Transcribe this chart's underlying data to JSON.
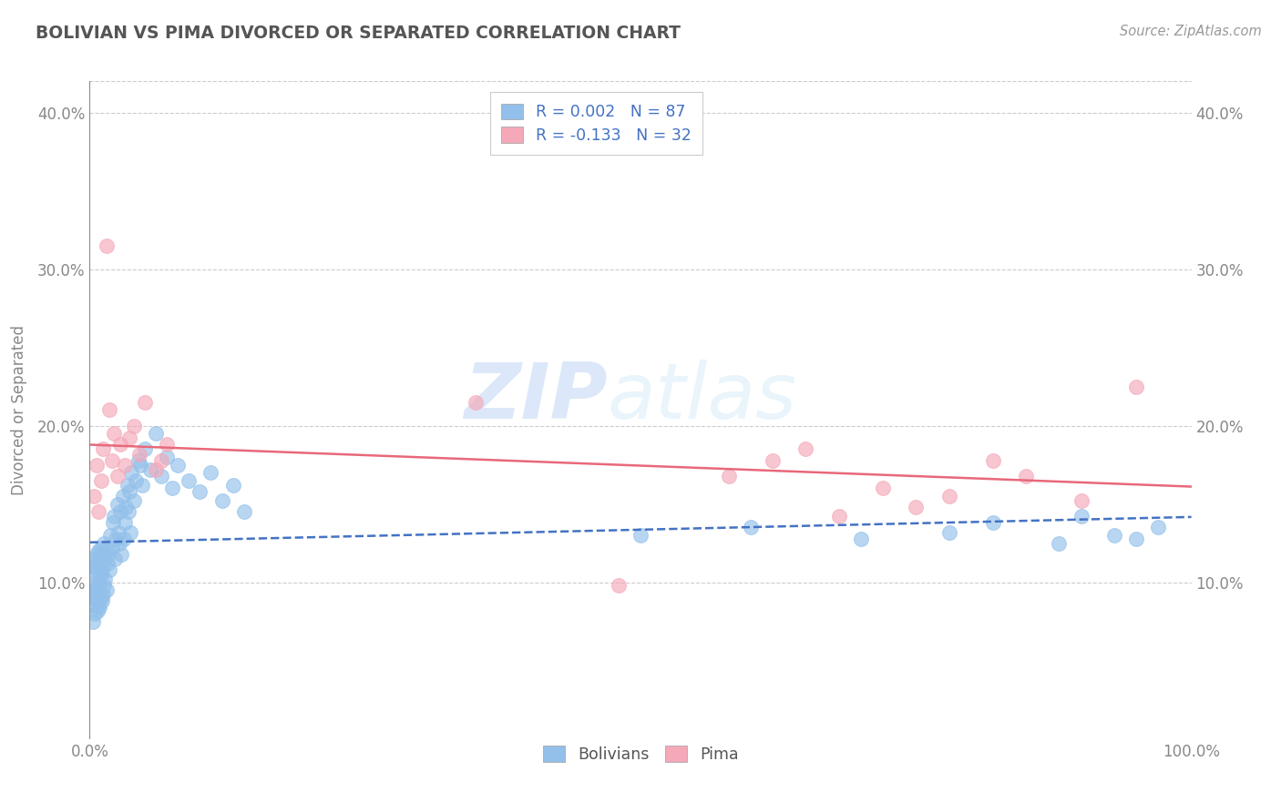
{
  "title": "BOLIVIAN VS PIMA DIVORCED OR SEPARATED CORRELATION CHART",
  "source_text": "Source: ZipAtlas.com",
  "ylabel": "Divorced or Separated",
  "xlim": [
    0.0,
    1.0
  ],
  "ylim": [
    0.0,
    0.42
  ],
  "ytick_labels": [
    "10.0%",
    "20.0%",
    "30.0%",
    "40.0%"
  ],
  "ytick_positions": [
    0.1,
    0.2,
    0.3,
    0.4
  ],
  "bolivian_color": "#92c0ea",
  "pima_color": "#f4a8b8",
  "bolivian_line_color": "#4472c4",
  "pima_line_color": "#e8687a",
  "R_bolivian": 0.002,
  "N_bolivian": 87,
  "R_pima": -0.133,
  "N_pima": 32,
  "legend_label_bolivian": "Bolivians",
  "legend_label_pima": "Pima",
  "watermark_zip": "ZIP",
  "watermark_atlas": "atlas",
  "grid_color": "#cccccc",
  "background_color": "#ffffff",
  "title_color": "#555555",
  "legend_text_color": "#4472c4",
  "source_color": "#999999",
  "axis_color": "#888888",
  "bolivian_x": [
    0.002,
    0.003,
    0.003,
    0.004,
    0.004,
    0.004,
    0.005,
    0.005,
    0.005,
    0.005,
    0.006,
    0.006,
    0.006,
    0.006,
    0.007,
    0.007,
    0.007,
    0.008,
    0.008,
    0.008,
    0.009,
    0.009,
    0.009,
    0.01,
    0.01,
    0.01,
    0.011,
    0.011,
    0.012,
    0.012,
    0.013,
    0.013,
    0.014,
    0.014,
    0.015,
    0.015,
    0.016,
    0.017,
    0.018,
    0.019,
    0.02,
    0.021,
    0.022,
    0.023,
    0.024,
    0.025,
    0.026,
    0.027,
    0.028,
    0.029,
    0.03,
    0.031,
    0.032,
    0.033,
    0.034,
    0.035,
    0.036,
    0.037,
    0.038,
    0.04,
    0.042,
    0.044,
    0.046,
    0.048,
    0.05,
    0.055,
    0.06,
    0.065,
    0.07,
    0.075,
    0.08,
    0.09,
    0.1,
    0.11,
    0.12,
    0.13,
    0.14,
    0.5,
    0.6,
    0.7,
    0.78,
    0.82,
    0.88,
    0.9,
    0.93,
    0.95,
    0.97
  ],
  "bolivian_y": [
    0.09,
    0.105,
    0.075,
    0.085,
    0.095,
    0.11,
    0.08,
    0.092,
    0.1,
    0.115,
    0.088,
    0.096,
    0.108,
    0.118,
    0.082,
    0.094,
    0.112,
    0.086,
    0.098,
    0.12,
    0.084,
    0.1,
    0.115,
    0.09,
    0.105,
    0.122,
    0.088,
    0.108,
    0.092,
    0.118,
    0.098,
    0.125,
    0.102,
    0.115,
    0.095,
    0.12,
    0.112,
    0.118,
    0.108,
    0.13,
    0.122,
    0.138,
    0.142,
    0.115,
    0.128,
    0.15,
    0.132,
    0.125,
    0.145,
    0.118,
    0.155,
    0.128,
    0.138,
    0.148,
    0.162,
    0.145,
    0.158,
    0.132,
    0.17,
    0.152,
    0.165,
    0.178,
    0.175,
    0.162,
    0.185,
    0.172,
    0.195,
    0.168,
    0.18,
    0.16,
    0.175,
    0.165,
    0.158,
    0.17,
    0.152,
    0.162,
    0.145,
    0.13,
    0.135,
    0.128,
    0.132,
    0.138,
    0.125,
    0.142,
    0.13,
    0.128,
    0.135
  ],
  "pima_x": [
    0.004,
    0.006,
    0.008,
    0.01,
    0.012,
    0.015,
    0.018,
    0.02,
    0.022,
    0.025,
    0.028,
    0.032,
    0.036,
    0.04,
    0.045,
    0.05,
    0.06,
    0.065,
    0.07,
    0.35,
    0.48,
    0.58,
    0.62,
    0.65,
    0.68,
    0.72,
    0.75,
    0.78,
    0.82,
    0.85,
    0.9,
    0.95
  ],
  "pima_y": [
    0.155,
    0.175,
    0.145,
    0.165,
    0.185,
    0.315,
    0.21,
    0.178,
    0.195,
    0.168,
    0.188,
    0.175,
    0.192,
    0.2,
    0.182,
    0.215,
    0.172,
    0.178,
    0.188,
    0.215,
    0.098,
    0.168,
    0.178,
    0.185,
    0.142,
    0.16,
    0.148,
    0.155,
    0.178,
    0.168,
    0.152,
    0.225
  ]
}
